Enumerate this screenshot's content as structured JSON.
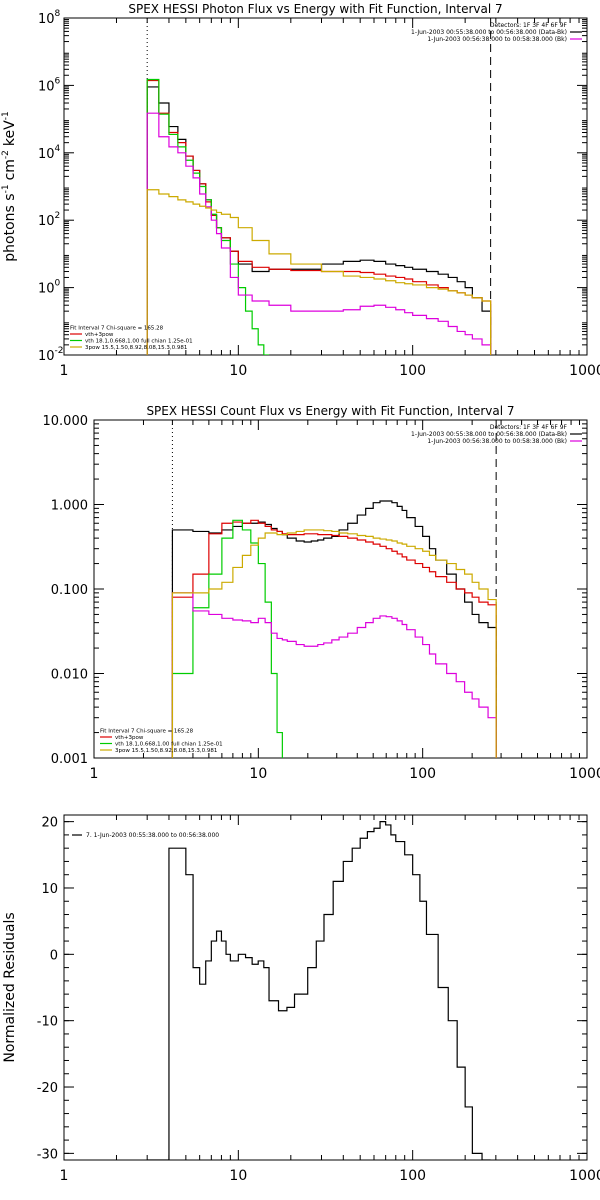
{
  "chart_data": [
    {
      "type": "line",
      "title": "SPEX HESSI Photon Flux vs Energy with Fit Function, Interval 7",
      "xlabel": "",
      "ylabel": "photons s",
      "ylabel_parts": {
        "s_exp": "-1",
        "cm": "cm",
        "cm_exp": "-2",
        "kev": "keV",
        "kev_exp": "-1"
      },
      "xscale": "log",
      "yscale": "log",
      "xlim": [
        1,
        1000
      ],
      "ylim": [
        0.01,
        100000000
      ],
      "x_ticks": [
        {
          "v": 1,
          "label": "1"
        },
        {
          "v": 10,
          "label": "10"
        },
        {
          "v": 100,
          "label": "100"
        },
        {
          "v": 1000,
          "label": "1000"
        }
      ],
      "y_ticks": [
        {
          "v": 0.01,
          "base": "10",
          "exp": "-2"
        },
        {
          "v": 1,
          "base": "10",
          "exp": "0"
        },
        {
          "v": 100,
          "base": "10",
          "exp": "2"
        },
        {
          "v": 10000,
          "base": "10",
          "exp": "4"
        },
        {
          "v": 1000000,
          "base": "10",
          "exp": "6"
        },
        {
          "v": 100000000,
          "base": "10",
          "exp": "8"
        }
      ],
      "vlines": [
        {
          "x": 3,
          "style": "dotted"
        },
        {
          "x": 280,
          "style": "dashed"
        }
      ],
      "legend_top_right": [
        {
          "text": "Detectors: 1F 3F 4F 6F 9F",
          "color": ""
        },
        {
          "text": "1-Jun-2003 00:55:38.000 to 00:56:38.000 (Data-Bk)",
          "color": "#000000"
        },
        {
          "text": "1-Jun-2003 00:56:38.000 to 00:58:38.000 (Bk)",
          "color": "#dd00dd"
        }
      ],
      "legend_bottom_left": [
        {
          "text": "Fit Interval  7    Chi-square = 165.28",
          "color": ""
        },
        {
          "text": "vth+3pow",
          "color": "#dd0000"
        },
        {
          "text": "vth 18.1,0.668,1.00   full chian 1.25e-01",
          "color": "#00cc00"
        },
        {
          "text": "3pow 15.5,1.50,8.92,8.08,15.3,0.981",
          "color": "#ccaa00"
        }
      ],
      "series": [
        {
          "color": "#000000",
          "edges": [
            3,
            3.5,
            4,
            4.5,
            5,
            5.5,
            6,
            6.5,
            7,
            7.5,
            8,
            9,
            10,
            12,
            15,
            20,
            30,
            40,
            50,
            60,
            70,
            80,
            90,
            100,
            120,
            140,
            160,
            180,
            200,
            220,
            250,
            280
          ],
          "values": [
            900000,
            300000,
            60000,
            25000,
            8000,
            3000,
            1200,
            400,
            140,
            60,
            30,
            12,
            5,
            3,
            3.5,
            3.5,
            5,
            6,
            6.5,
            6,
            5,
            4.5,
            4,
            3.5,
            3,
            2.5,
            2,
            1.5,
            1,
            0.5,
            0.2
          ]
        },
        {
          "color": "#dd0000",
          "edges": [
            3,
            3.5,
            4,
            4.5,
            5,
            5.5,
            6,
            6.5,
            7,
            7.5,
            8,
            9,
            10,
            12,
            15,
            20,
            30,
            40,
            50,
            60,
            70,
            80,
            90,
            100,
            120,
            140,
            160,
            180,
            200,
            220,
            250,
            280
          ],
          "values": [
            1400000,
            150000,
            40000,
            20000,
            8000,
            3000,
            1200,
            350,
            140,
            60,
            30,
            12,
            6,
            4,
            3.5,
            3.2,
            3,
            3,
            2.8,
            2.5,
            2.2,
            2,
            1.8,
            1.5,
            1.2,
            1,
            0.8,
            0.7,
            0.6,
            0.5,
            0.4
          ]
        },
        {
          "color": "#00cc00",
          "edges": [
            3,
            3.5,
            4,
            4.5,
            5,
            5.5,
            6,
            6.5,
            7,
            7.5,
            8,
            9,
            10,
            11,
            12,
            13,
            14,
            15
          ],
          "values": [
            1500000,
            140000,
            35000,
            15000,
            6000,
            2500,
            1000,
            400,
            150,
            60,
            25,
            5,
            1,
            0.2,
            0.06,
            0.02,
            0.01
          ]
        },
        {
          "color": "#dd00dd",
          "edges": [
            3,
            3.5,
            4,
            4.5,
            5,
            5.5,
            6,
            6.5,
            7,
            7.5,
            8,
            9,
            10,
            12,
            15,
            20,
            30,
            40,
            50,
            60,
            70,
            80,
            90,
            100,
            120,
            140,
            160,
            180,
            200,
            220,
            250,
            280
          ],
          "values": [
            150000,
            30000,
            15000,
            10000,
            4000,
            1800,
            600,
            250,
            100,
            40,
            15,
            2,
            0.6,
            0.4,
            0.3,
            0.2,
            0.2,
            0.22,
            0.28,
            0.3,
            0.26,
            0.22,
            0.18,
            0.15,
            0.12,
            0.1,
            0.07,
            0.05,
            0.04,
            0.03,
            0.02
          ]
        },
        {
          "color": "#ccaa00",
          "edges": [
            3,
            3.5,
            4,
            4.5,
            5,
            5.5,
            6,
            6.5,
            7,
            7.5,
            8,
            9,
            10,
            12,
            15,
            20,
            30,
            40,
            50,
            60,
            70,
            80,
            90,
            100,
            120,
            140,
            160,
            180,
            200,
            220,
            250,
            280
          ],
          "values": [
            800,
            600,
            500,
            400,
            350,
            300,
            260,
            230,
            200,
            170,
            150,
            120,
            60,
            25,
            10,
            5,
            3,
            2.2,
            2,
            1.8,
            1.6,
            1.4,
            1.3,
            1.2,
            1,
            0.9,
            0.8,
            0.7,
            0.6,
            0.5,
            0.4
          ]
        }
      ]
    },
    {
      "type": "line",
      "title": "SPEX HESSI Count Flux vs Energy with Fit Function, Interval 7",
      "xlabel": "",
      "ylabel": "",
      "xscale": "log",
      "yscale": "log",
      "xlim": [
        1,
        1000
      ],
      "ylim": [
        0.001,
        10
      ],
      "x_ticks": [
        {
          "v": 1,
          "label": "1"
        },
        {
          "v": 10,
          "label": "10"
        },
        {
          "v": 100,
          "label": "100"
        },
        {
          "v": 1000,
          "label": "1000"
        }
      ],
      "y_ticks": [
        {
          "v": 0.001,
          "label": "0.001"
        },
        {
          "v": 0.01,
          "label": "0.010"
        },
        {
          "v": 0.1,
          "label": "0.100"
        },
        {
          "v": 1,
          "label": "1.000"
        },
        {
          "v": 10,
          "label": "10.000"
        }
      ],
      "vlines": [
        {
          "x": 3,
          "style": "dotted"
        },
        {
          "x": 280,
          "style": "dashed"
        }
      ],
      "legend_top_right": [
        {
          "text": "Detectors: 1F 3F 4F 6F 9F",
          "color": ""
        },
        {
          "text": "1-Jun-2003 00:55:38.000 to 00:56:38.000 (Data-Bk)",
          "color": "#000000"
        },
        {
          "text": "1-Jun-2003 00:56:38.000 to 00:58:38.000 (Bk)",
          "color": "#dd00dd"
        }
      ],
      "legend_bottom_left": [
        {
          "text": "Fit Interval  7    Chi-square = 165.28",
          "color": ""
        },
        {
          "text": "vth+3pow",
          "color": "#dd0000"
        },
        {
          "text": "vth 18.1,0.668,1.00   full chian 1.25e-01",
          "color": "#00cc00"
        },
        {
          "text": "3pow 15.5,1.50,8.92,8.08,15.3,0.981",
          "color": "#ccaa00"
        }
      ],
      "series": [
        {
          "color": "#000000",
          "edges": [
            3,
            4,
            5,
            6,
            7,
            8,
            9,
            10,
            11,
            12,
            13,
            14,
            15,
            17,
            19,
            21,
            23,
            25,
            28,
            31,
            35,
            40,
            45,
            50,
            55,
            60,
            65,
            70,
            75,
            80,
            90,
            100,
            110,
            120,
            140,
            160,
            180,
            200,
            220,
            250,
            280
          ],
          "values": [
            0.5,
            0.48,
            0.46,
            0.5,
            0.55,
            0.6,
            0.6,
            0.62,
            0.58,
            0.52,
            0.48,
            0.44,
            0.4,
            0.37,
            0.36,
            0.37,
            0.38,
            0.4,
            0.42,
            0.5,
            0.6,
            0.75,
            0.9,
            1.05,
            1.1,
            1.1,
            1.05,
            0.95,
            0.85,
            0.7,
            0.55,
            0.42,
            0.3,
            0.22,
            0.15,
            0.1,
            0.07,
            0.05,
            0.04,
            0.035
          ]
        },
        {
          "color": "#dd0000",
          "edges": [
            3,
            4,
            5,
            6,
            7,
            8,
            9,
            10,
            11,
            12,
            13,
            14,
            15,
            17,
            19,
            21,
            23,
            25,
            28,
            31,
            35,
            40,
            45,
            50,
            55,
            60,
            65,
            70,
            75,
            80,
            90,
            100,
            110,
            120,
            140,
            160,
            180,
            200,
            220,
            250,
            280
          ],
          "values": [
            0.08,
            0.15,
            0.45,
            0.6,
            0.62,
            0.6,
            0.65,
            0.6,
            0.55,
            0.5,
            0.48,
            0.45,
            0.44,
            0.44,
            0.45,
            0.45,
            0.44,
            0.44,
            0.43,
            0.42,
            0.4,
            0.38,
            0.36,
            0.34,
            0.32,
            0.3,
            0.28,
            0.26,
            0.24,
            0.22,
            0.2,
            0.18,
            0.16,
            0.14,
            0.12,
            0.1,
            0.09,
            0.08,
            0.07,
            0.065
          ]
        },
        {
          "color": "#00cc00",
          "edges": [
            3,
            4,
            5,
            6,
            7,
            8,
            9,
            10,
            11,
            12,
            13,
            14
          ],
          "values": [
            0.01,
            0.06,
            0.15,
            0.4,
            0.65,
            0.5,
            0.35,
            0.2,
            0.07,
            0.01,
            0.002
          ]
        },
        {
          "color": "#dd00dd",
          "edges": [
            3,
            4,
            5,
            6,
            7,
            8,
            9,
            10,
            11,
            12,
            13,
            14,
            15,
            17,
            19,
            21,
            23,
            25,
            28,
            31,
            35,
            40,
            45,
            50,
            55,
            60,
            65,
            70,
            75,
            80,
            90,
            100,
            110,
            120,
            140,
            160,
            180,
            200,
            220,
            250,
            280
          ],
          "values": [
            0.09,
            0.055,
            0.05,
            0.045,
            0.043,
            0.042,
            0.04,
            0.045,
            0.04,
            0.03,
            0.026,
            0.025,
            0.024,
            0.022,
            0.021,
            0.021,
            0.022,
            0.023,
            0.025,
            0.027,
            0.03,
            0.035,
            0.04,
            0.045,
            0.048,
            0.047,
            0.045,
            0.042,
            0.038,
            0.033,
            0.027,
            0.022,
            0.017,
            0.013,
            0.01,
            0.008,
            0.006,
            0.005,
            0.004,
            0.003
          ]
        },
        {
          "color": "#ccaa00",
          "edges": [
            3,
            4,
            5,
            6,
            7,
            8,
            9,
            10,
            11,
            12,
            13,
            14,
            15,
            17,
            19,
            21,
            23,
            25,
            28,
            31,
            35,
            40,
            45,
            50,
            55,
            60,
            65,
            70,
            75,
            80,
            90,
            100,
            110,
            120,
            140,
            160,
            180,
            200,
            220,
            250,
            280
          ],
          "values": [
            0.09,
            0.09,
            0.1,
            0.12,
            0.18,
            0.25,
            0.33,
            0.4,
            0.46,
            0.46,
            0.44,
            0.44,
            0.46,
            0.48,
            0.5,
            0.5,
            0.5,
            0.49,
            0.48,
            0.46,
            0.45,
            0.43,
            0.42,
            0.4,
            0.39,
            0.38,
            0.37,
            0.35,
            0.34,
            0.32,
            0.3,
            0.28,
            0.25,
            0.22,
            0.2,
            0.17,
            0.15,
            0.12,
            0.1,
            0.075
          ]
        }
      ]
    },
    {
      "type": "line",
      "title": "",
      "xlabel": "",
      "ylabel": "Normalized Residuals",
      "xscale": "log",
      "yscale": "linear",
      "xlim": [
        1,
        1000
      ],
      "ylim": [
        -31,
        21
      ],
      "x_ticks": [
        {
          "v": 1,
          "label": "1"
        },
        {
          "v": 10,
          "label": "10"
        },
        {
          "v": 100,
          "label": "100"
        },
        {
          "v": 1000,
          "label": "1000"
        }
      ],
      "y_ticks": [
        {
          "v": 20,
          "label": "20"
        },
        {
          "v": 10,
          "label": "10"
        },
        {
          "v": 0,
          "label": "0"
        },
        {
          "v": -10,
          "label": "-10"
        },
        {
          "v": -20,
          "label": "-20"
        },
        {
          "v": -30,
          "label": "-30"
        }
      ],
      "legend_top_left": [
        {
          "text": "7.  1-Jun-2003 00:55:38.000 to 00:56:38.000",
          "color": "#000000"
        }
      ],
      "series": [
        {
          "color": "#000000",
          "edges": [
            3,
            4,
            5,
            5.5,
            6,
            6.5,
            7,
            7.5,
            8,
            8.5,
            9,
            9.5,
            10,
            11,
            12,
            13,
            14,
            15,
            17,
            19,
            21,
            23,
            25,
            28,
            31,
            35,
            40,
            45,
            50,
            55,
            60,
            65,
            70,
            75,
            80,
            90,
            100,
            110,
            120,
            140,
            160,
            180,
            200,
            220,
            250,
            280
          ],
          "values": [
            -31,
            16,
            12,
            -2,
            -4.5,
            -1,
            2,
            3.5,
            2,
            0,
            -1,
            -1,
            0,
            -0.5,
            -1.5,
            -1,
            -2,
            -7,
            -8.5,
            -8,
            -6,
            -6,
            -2,
            2,
            6,
            11,
            14,
            16,
            17.5,
            18.5,
            19,
            20,
            19.5,
            18,
            17,
            15,
            12,
            8,
            3,
            -5,
            -10,
            -17,
            -23,
            -30,
            -31
          ]
        }
      ]
    }
  ]
}
